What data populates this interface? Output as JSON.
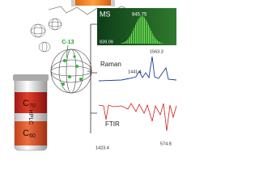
{
  "labels": {
    "tube_top": {
      "letter": "C",
      "subscript": "70"
    },
    "tube_middle": "HPLC",
    "tube_bottom": {
      "letter": "C",
      "subscript": "60"
    },
    "isotope": "C-13"
  },
  "spectra": {
    "ms": {
      "name": "MS",
      "peaks": [
        "845.75",
        "839.09"
      ]
    },
    "raman": {
      "name": "Raman",
      "peaks": [
        "1563.3",
        "1441.4"
      ]
    },
    "ftir": {
      "name": "FTIR",
      "peaks": [
        "1423.4",
        "574.8"
      ]
    }
  }
}
